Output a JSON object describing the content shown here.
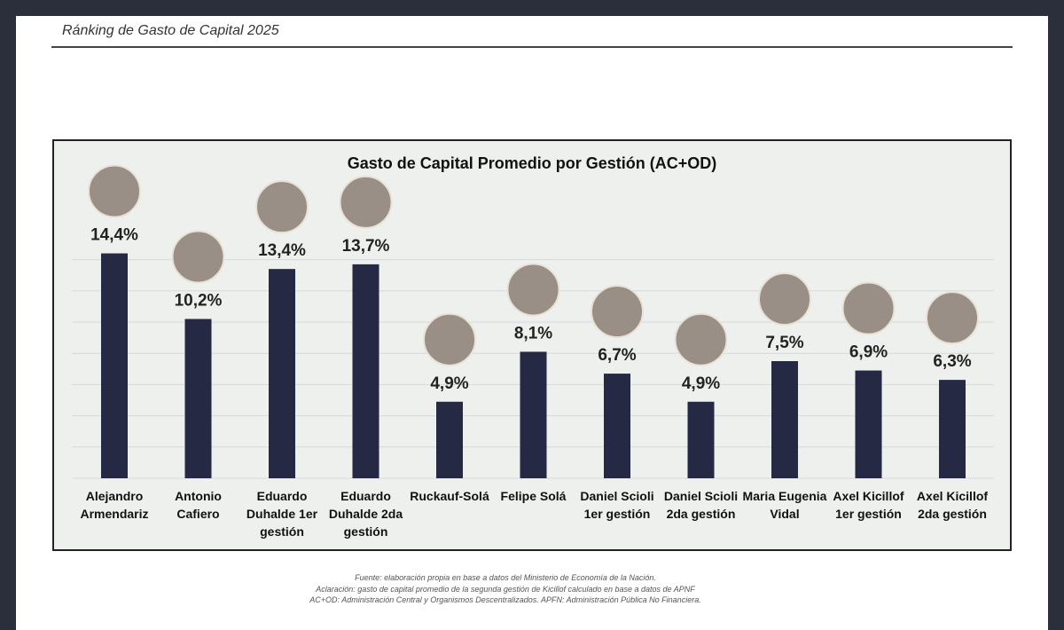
{
  "header": {
    "title": "Ránking de Gasto de Capital 2025"
  },
  "chart_data": {
    "type": "bar",
    "title": "Gasto de Capital Promedio por Gestión (AC+OD)",
    "categories": [
      "Alejandro Armendariz",
      "Antonio Cafiero",
      "Eduardo Duhalde 1er gestión",
      "Eduardo Duhalde 2da gestión",
      "Ruckauf-Solá",
      "Felipe Solá",
      "Daniel Scioli 1er gestión",
      "Daniel Scioli 2da gestión",
      "Maria Eugenia Vidal",
      "Axel Kicillof 1er gestión",
      "Axel Kicillof 2da gestión"
    ],
    "values": [
      14.4,
      10.2,
      13.4,
      13.7,
      4.9,
      8.1,
      6.7,
      4.9,
      7.5,
      6.9,
      6.3
    ],
    "value_labels": [
      "14,4%",
      "10,2%",
      "13,4%",
      "13,7%",
      "4,9%",
      "8,1%",
      "6,7%",
      "4,9%",
      "7,5%",
      "6,9%",
      "6,3%"
    ],
    "color": "#262944",
    "ylim": [
      0,
      15
    ],
    "yticks": [
      0,
      2,
      4,
      6,
      8,
      10,
      12,
      14
    ],
    "grid": true
  },
  "footnotes": [
    "Fuente: elaboración propia en base a datos del Ministerio de Economía de la Nación.",
    "Aclaración: gasto de capital promedio de la segunda gestión de Kicillof calculado en base a datos de APNF",
    "AC+OD: Administración Central y Organismos Descentralizados. APFN: Administración Pública No Financiera."
  ]
}
